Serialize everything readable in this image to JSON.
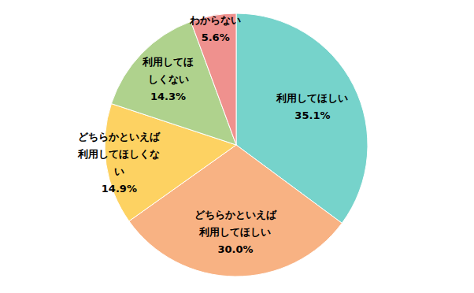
{
  "chart_data": {
    "type": "pie",
    "categories": [
      "利用してほしい",
      "どちらかといえば利用してほしい",
      "どちらかといえば利用してほしくない",
      "利用してほしくない",
      "わからない"
    ],
    "values": [
      35.1,
      30.0,
      14.9,
      14.3,
      5.6
    ],
    "value_labels": [
      "35.1%",
      "30.0%",
      "14.9%",
      "14.3%",
      "5.6%"
    ],
    "colors": [
      "#76d3cb",
      "#f8b283",
      "#fdd262",
      "#afd28d",
      "#ef918e"
    ],
    "data_labels": true
  }
}
